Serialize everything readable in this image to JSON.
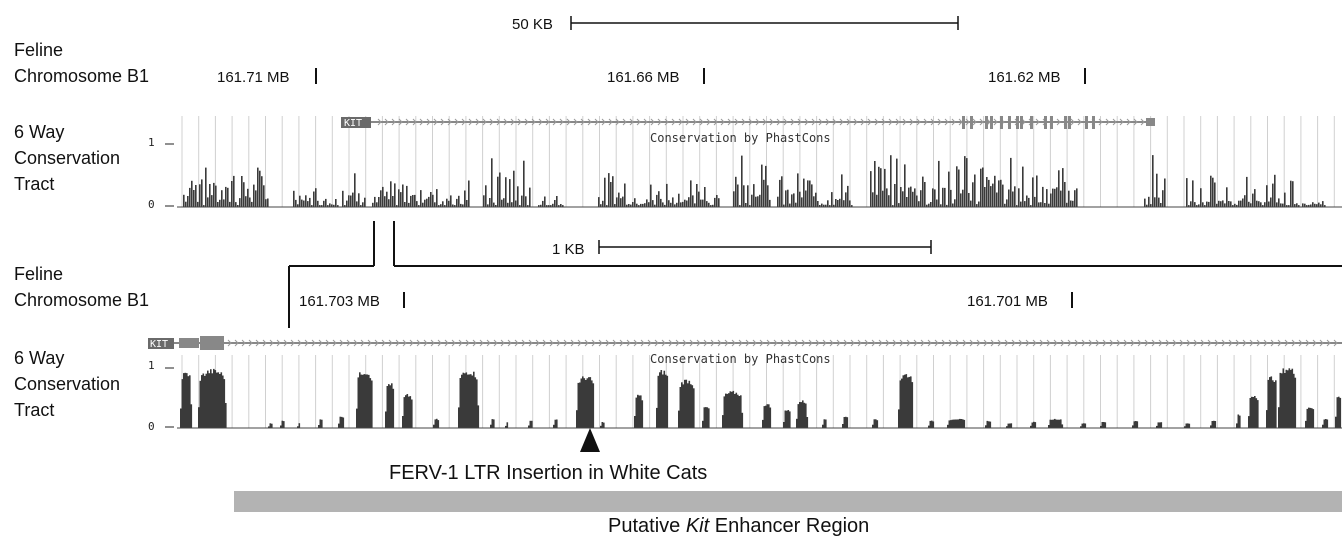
{
  "top_panel": {
    "scale_label": "50 KB",
    "chrom_label_line1": "Feline",
    "chrom_label_line2": "Chromosome B1",
    "coords": [
      "161.71 MB",
      "161.66 MB",
      "161.62 MB"
    ],
    "track_label_lines": [
      "6 Way",
      "Conservation",
      "Tract"
    ],
    "gene_name": "KIT",
    "track_title": "Conservation by PhastCons",
    "y_max_label": "1",
    "y_min_label": "0"
  },
  "bottom_panel": {
    "scale_label": "1 KB",
    "chrom_label_line1": "Feline",
    "chrom_label_line2": "Chromosome B1",
    "coords": [
      "161.703 MB",
      "161.701 MB"
    ],
    "track_label_lines": [
      "6 Way",
      "Conservation",
      "Tract"
    ],
    "gene_name": "KIT",
    "track_title": "Conservation by PhastCons",
    "y_max_label": "1",
    "y_min_label": "0"
  },
  "annotations": {
    "insertion_label": "FERV-1 LTR Insertion in White Cats",
    "region_label_pre": "Putative ",
    "region_label_italic": "Kit",
    "region_label_post": " Enhancer Region"
  },
  "colors": {
    "bars": "#3a3a3a",
    "gridlines": "#d0d0d0",
    "gene_body": "#888888",
    "region_bar": "#b3b3b3"
  }
}
